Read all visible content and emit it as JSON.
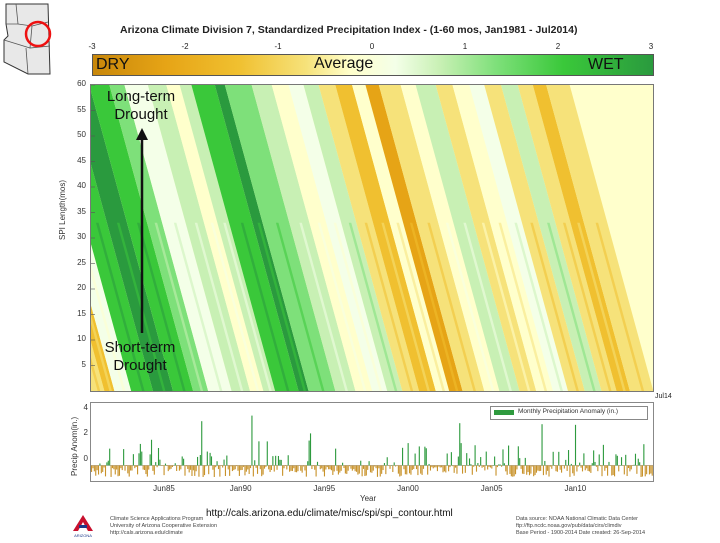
{
  "chart_data": {
    "type": "heatmap",
    "title": "Arizona Climate Division 7, Standardized Precipitation Index - (1-60 mos, Jan1981 - Jul2014)",
    "xlabel": "Year",
    "ylabel": "SPI Length(mos)",
    "colorbar_ticks": [
      "-3",
      "-2",
      "-1",
      "0",
      "1",
      "2",
      "3"
    ],
    "colorbar_range": [
      -3,
      3
    ],
    "colorbar_labels": {
      "dry": "DRY",
      "average": "Average",
      "wet": "WET"
    },
    "ylim": [
      0,
      60
    ],
    "y_ticks": [
      "5",
      "10",
      "15",
      "20",
      "25",
      "30",
      "35",
      "40",
      "45",
      "50",
      "55",
      "60"
    ],
    "x_end_label": "Jul14",
    "annotations": {
      "long_term": "Long-term Drought",
      "short_term": "Short-term Drought"
    },
    "colors": [
      "#c8870a",
      "#e6a416",
      "#f0c030",
      "#f6e27a",
      "#ffffcc",
      "#f4ffe8",
      "#c8f0b4",
      "#7ee07a",
      "#3ac83a",
      "#2a9a3e"
    ],
    "bands": [
      {
        "x": 1981.0,
        "w": 0.8,
        "c": 3
      },
      {
        "x": 1981.8,
        "w": 0.6,
        "c": 2
      },
      {
        "x": 1982.4,
        "w": 1.0,
        "c": 5
      },
      {
        "x": 1983.4,
        "w": 1.3,
        "c": 8
      },
      {
        "x": 1984.7,
        "w": 1.2,
        "c": 9
      },
      {
        "x": 1985.9,
        "w": 1.2,
        "c": 8
      },
      {
        "x": 1987.1,
        "w": 0.9,
        "c": 7
      },
      {
        "x": 1988.0,
        "w": 1.4,
        "c": 5
      },
      {
        "x": 1989.4,
        "w": 1.1,
        "c": 6
      },
      {
        "x": 1990.5,
        "w": 0.8,
        "c": 4
      },
      {
        "x": 1991.3,
        "w": 0.7,
        "c": 6
      },
      {
        "x": 1992.0,
        "w": 1.4,
        "c": 8
      },
      {
        "x": 1993.4,
        "w": 0.6,
        "c": 9
      },
      {
        "x": 1994.0,
        "w": 1.6,
        "c": 7
      },
      {
        "x": 1995.6,
        "w": 1.2,
        "c": 6
      },
      {
        "x": 1996.8,
        "w": 1.0,
        "c": 4
      },
      {
        "x": 1997.8,
        "w": 0.9,
        "c": 5
      },
      {
        "x": 1998.7,
        "w": 0.9,
        "c": 6
      },
      {
        "x": 1999.6,
        "w": 1.0,
        "c": 3
      },
      {
        "x": 2000.6,
        "w": 1.0,
        "c": 2
      },
      {
        "x": 2001.6,
        "w": 0.8,
        "c": 4
      },
      {
        "x": 2002.4,
        "w": 0.8,
        "c": 1
      },
      {
        "x": 2003.2,
        "w": 1.3,
        "c": 3
      },
      {
        "x": 2004.5,
        "w": 0.9,
        "c": 4
      },
      {
        "x": 2005.4,
        "w": 1.2,
        "c": 6
      },
      {
        "x": 2006.6,
        "w": 1.0,
        "c": 3
      },
      {
        "x": 2007.6,
        "w": 1.0,
        "c": 4
      },
      {
        "x": 2008.6,
        "w": 0.9,
        "c": 5
      },
      {
        "x": 2009.5,
        "w": 1.0,
        "c": 3
      },
      {
        "x": 2010.5,
        "w": 1.0,
        "c": 6
      },
      {
        "x": 2011.5,
        "w": 0.9,
        "c": 3
      },
      {
        "x": 2012.4,
        "w": 0.8,
        "c": 2
      },
      {
        "x": 2013.2,
        "w": 1.4,
        "c": 3
      }
    ],
    "anomaly_series": {
      "name": "Monthly Precipitation Anomaly (in.)",
      "ylabel": "Precip Anom(in.)",
      "ylim": [
        -1,
        4
      ],
      "y_ticks": [
        "0",
        "2",
        "4"
      ],
      "x_ticks": [
        "Jun85",
        "Jan90",
        "Jan95",
        "Jan00",
        "Jan05",
        "Jan10"
      ],
      "x_tick_values": [
        1985.42,
        1990.0,
        1995.0,
        2000.0,
        2005.0,
        2010.0
      ],
      "xlim": [
        1981.0,
        2014.58
      ],
      "positive_color": "#2e9a3e",
      "negative_color": "#c8922a"
    }
  },
  "map": {
    "title": "Arizona climate divisions map",
    "highlight": "Division 7"
  },
  "source_url": "http://cals.arizona.edu/climate/misc/spi/spi_contour.html",
  "footer_left": [
    "Climate Science Applications Program",
    "University of Arizona Cooperative Extension",
    "http://cals.arizona.edu/climate"
  ],
  "footer_right": [
    "Data source: NOAA National Climatic Data Center",
    "ftp://ftp.ncdc.noaa.gov/pub/data/cirs/climdiv",
    "Base Period - 1900-2014   Date created: 26-Sep-2014"
  ],
  "logo_label": "ARIZONA"
}
